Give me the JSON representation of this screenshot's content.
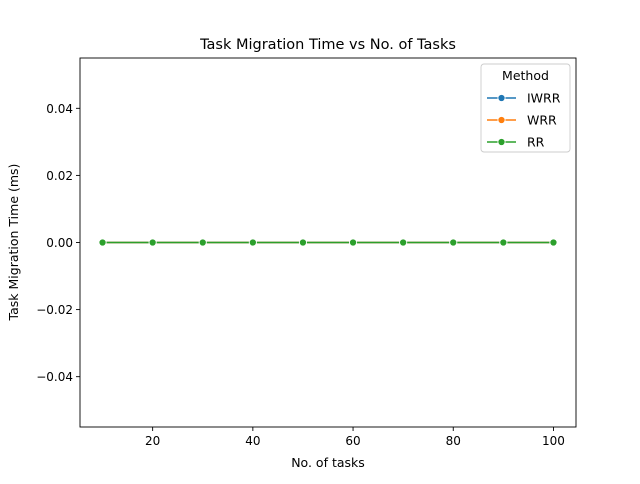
{
  "chart_data": {
    "type": "line",
    "title": "Task Migration Time vs No. of Tasks",
    "xlabel": "No. of tasks",
    "ylabel": "Task Migration Time (ms)",
    "x": [
      10,
      20,
      30,
      40,
      50,
      60,
      70,
      80,
      90,
      100
    ],
    "xlim": [
      5.5,
      104.5
    ],
    "ylim": [
      -0.055,
      0.055
    ],
    "xticks": [
      20,
      40,
      60,
      80,
      100
    ],
    "xtick_labels": [
      "20",
      "40",
      "60",
      "80",
      "100"
    ],
    "yticks": [
      -0.04,
      -0.02,
      0.0,
      0.02,
      0.04
    ],
    "ytick_labels": [
      "−0.04",
      "−0.02",
      "0.00",
      "0.02",
      "0.04"
    ],
    "grid": false,
    "legend": {
      "title": "Method",
      "position": "top-right"
    },
    "series": [
      {
        "name": "IWRR",
        "color": "#1f77b4",
        "marker": "circle",
        "values": [
          0,
          0,
          0,
          0,
          0,
          0,
          0,
          0,
          0,
          0
        ]
      },
      {
        "name": "WRR",
        "color": "#ff7f0e",
        "marker": "circle",
        "values": [
          0,
          0,
          0,
          0,
          0,
          0,
          0,
          0,
          0,
          0
        ]
      },
      {
        "name": "RR",
        "color": "#2ca02c",
        "marker": "circle",
        "values": [
          0,
          0,
          0,
          0,
          0,
          0,
          0,
          0,
          0,
          0
        ]
      }
    ]
  }
}
